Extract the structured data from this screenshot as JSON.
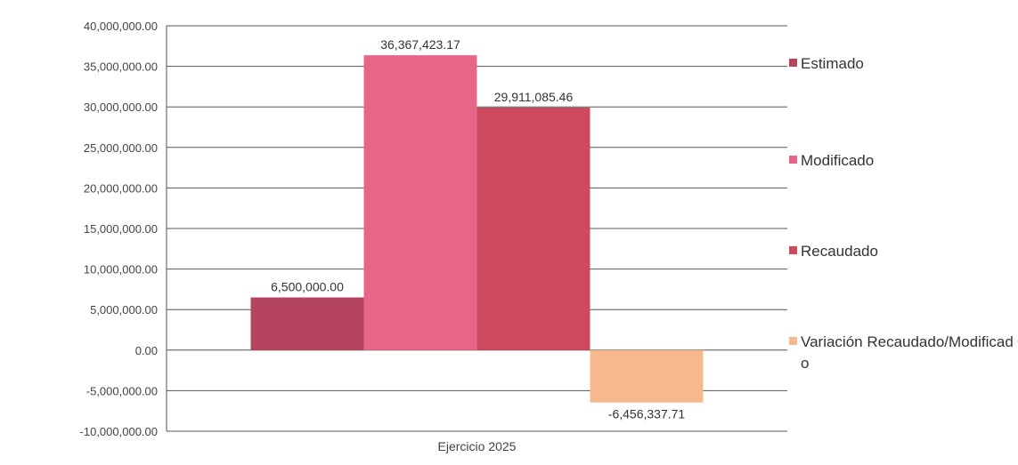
{
  "chart_data": {
    "type": "bar",
    "title": "",
    "categories": [
      "Ejercicio 2025"
    ],
    "series": [
      {
        "name": "Estimado",
        "values": [
          6500000.0
        ],
        "label": "6,500,000.00",
        "color": "#b5455f"
      },
      {
        "name": "Modificado",
        "values": [
          36367423.17
        ],
        "label": "36,367,423.17",
        "color": "#e8658a"
      },
      {
        "name": "Recaudado",
        "values": [
          29911085.46
        ],
        "label": "29,911,085.46",
        "color": "#cc4a5c"
      },
      {
        "name": "Variación Recaudado/Modificado",
        "values": [
          -6456337.71
        ],
        "label": "-6,456,337.71",
        "color": "#f6b98e"
      }
    ],
    "ylim": [
      -10000000,
      40000000
    ],
    "yticks": [
      "40,000,000.00",
      "35,000,000.00",
      "30,000,000.00",
      "25,000,000.00",
      "20,000,000.00",
      "15,000,000.00",
      "10,000,000.00",
      "5,000,000.00",
      "0.00",
      "-5,000,000.00",
      "-10,000,000.00"
    ],
    "ytick_values": [
      40000000,
      35000000,
      30000000,
      25000000,
      20000000,
      15000000,
      10000000,
      5000000,
      0,
      -5000000,
      -10000000
    ],
    "xlabel": "",
    "ylabel": "",
    "grid": true,
    "legend_position": "right"
  },
  "legend": {
    "items": [
      {
        "text": "Estimado"
      },
      {
        "text": "Modificado"
      },
      {
        "text": "Recaudado"
      },
      {
        "text": "Variación Recaudado/Modificado"
      }
    ]
  }
}
